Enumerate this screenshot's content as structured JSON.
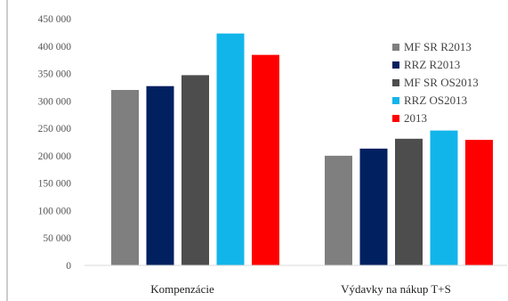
{
  "chart_data": {
    "type": "bar",
    "categories": [
      "Kompenzácie",
      "Výdavky na nákup T+S"
    ],
    "series": [
      {
        "name": "MF SR R2013",
        "color": "#7f7f7f",
        "values": [
          320000,
          200000
        ]
      },
      {
        "name": "RRZ R2013",
        "color": "#002060",
        "values": [
          327000,
          213000
        ]
      },
      {
        "name": "MF SR OS2013",
        "color": "#4d4d4d",
        "values": [
          347000,
          231000
        ]
      },
      {
        "name": "RRZ OS2013",
        "color": "#12b5ea",
        "values": [
          423000,
          246000
        ]
      },
      {
        "name": "2013",
        "color": "#ff0000",
        "values": [
          384000,
          229000
        ]
      }
    ],
    "ylim": [
      0,
      450000
    ],
    "yticks": [
      0,
      50000,
      100000,
      150000,
      200000,
      250000,
      300000,
      350000,
      400000,
      450000
    ],
    "ytick_labels": [
      "0",
      "50 000",
      "100 000",
      "150 000",
      "200 000",
      "250 000",
      "300 000",
      "350 000",
      "400 000",
      "450 000"
    ],
    "grid": false,
    "legend_position": "right"
  }
}
